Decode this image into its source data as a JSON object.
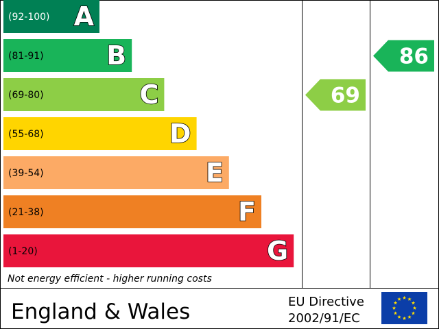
{
  "chart_data": {
    "type": "bar",
    "bands": [
      {
        "letter": "A",
        "range": "(92-100)",
        "color": "#008054"
      },
      {
        "letter": "B",
        "range": "(81-91)",
        "color": "#19b459"
      },
      {
        "letter": "C",
        "range": "(69-80)",
        "color": "#8dce46"
      },
      {
        "letter": "D",
        "range": "(55-68)",
        "color": "#ffd500"
      },
      {
        "letter": "E",
        "range": "(39-54)",
        "color": "#fcaa65"
      },
      {
        "letter": "F",
        "range": "(21-38)",
        "color": "#ef8023"
      },
      {
        "letter": "G",
        "range": "(1-20)",
        "color": "#e9153b"
      }
    ],
    "current": {
      "value": 69,
      "label": "69",
      "band": "C",
      "color": "#8dce46"
    },
    "potential": {
      "value": 86,
      "label": "86",
      "band": "B",
      "color": "#19b459"
    }
  },
  "footer_note": "Not energy efficient - higher running costs",
  "region": "England & Wales",
  "directive": {
    "line1": "EU Directive",
    "line2": "2002/91/EC"
  },
  "flag": {
    "background": "#0b3ea8",
    "stars": "#ffdd00"
  }
}
